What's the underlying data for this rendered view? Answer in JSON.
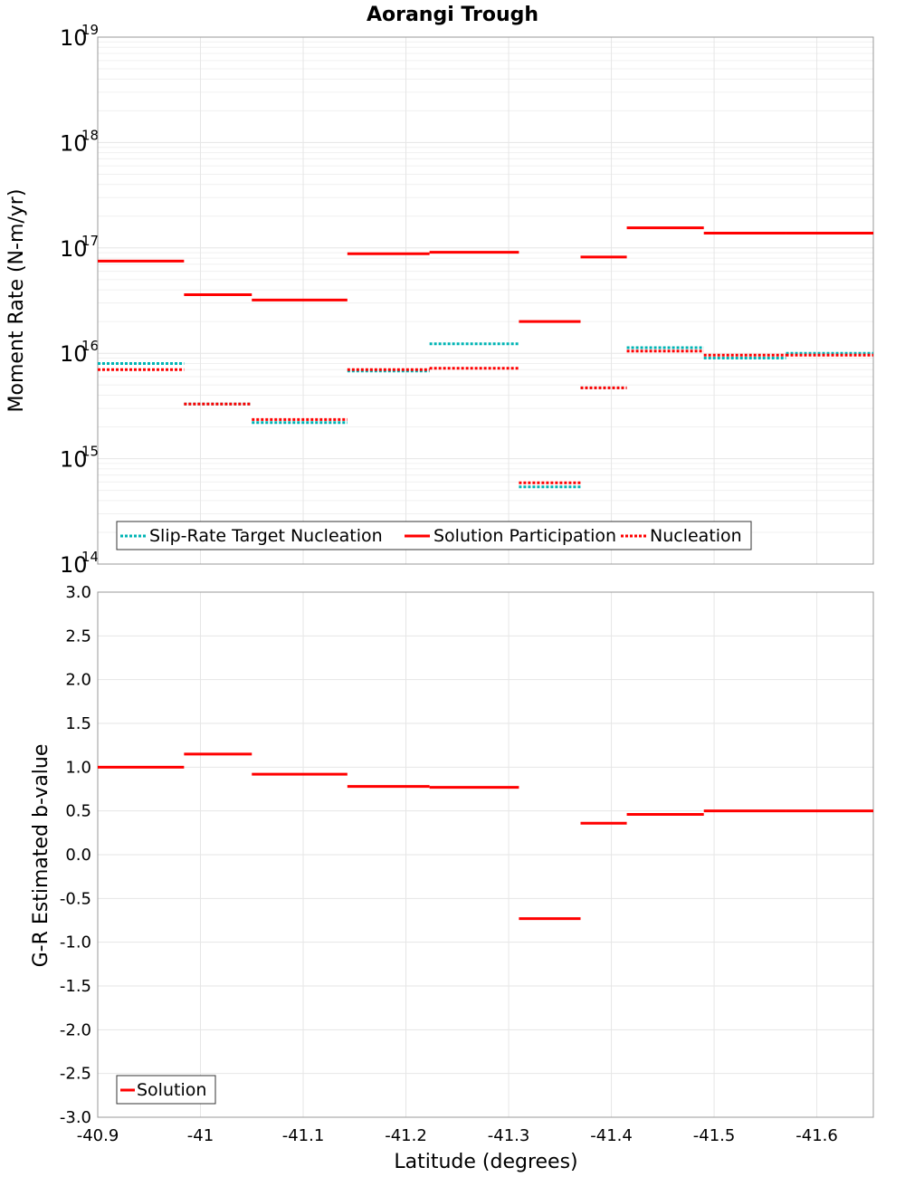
{
  "chart_data": [
    {
      "type": "line",
      "title": "Aorangi Trough",
      "ylabel": "Moment Rate (N-m/yr)",
      "xlabel": "",
      "yscale": "log",
      "ylim": [
        100000000000000.0,
        1e+19
      ],
      "xlim": [
        -40.9,
        -41.655
      ],
      "x_ticks": [
        -40.9,
        -41,
        -41.1,
        -41.2,
        -41.3,
        -41.4,
        -41.5,
        -41.6
      ],
      "y_ticks": [
        {
          "value": 100000000000000.0,
          "base": "10",
          "exp": "14"
        },
        {
          "value": 1000000000000000.0,
          "base": "10",
          "exp": "15"
        },
        {
          "value": 1e+16,
          "base": "10",
          "exp": "16"
        },
        {
          "value": 1e+17,
          "base": "10",
          "exp": "17"
        },
        {
          "value": 1e+18,
          "base": "10",
          "exp": "18"
        },
        {
          "value": 1e+19,
          "base": "10",
          "exp": "19"
        }
      ],
      "legend_position": "bottom-left",
      "series": [
        {
          "name": "Slip-Rate Target Nucleation",
          "color": "#00b4b4",
          "style": "dotted",
          "segments": [
            {
              "x0": -40.9,
              "x1": -40.984,
              "y": 8000000000000000.0
            },
            {
              "x0": -40.984,
              "x1": -41.05,
              "y": 3300000000000000.0
            },
            {
              "x0": -41.05,
              "x1": -41.143,
              "y": 2200000000000000.0
            },
            {
              "x0": -41.143,
              "x1": -41.223,
              "y": 6800000000000000.0
            },
            {
              "x0": -41.223,
              "x1": -41.31,
              "y": 1.23e+16
            },
            {
              "x0": -41.31,
              "x1": -41.37,
              "y": 540000000000000.0
            },
            {
              "x0": -41.37,
              "x1": -41.415,
              "y": 4700000000000000.0
            },
            {
              "x0": -41.415,
              "x1": -41.49,
              "y": 1.13e+16
            },
            {
              "x0": -41.49,
              "x1": -41.57,
              "y": 9000000000000000.0
            },
            {
              "x0": -41.57,
              "x1": -41.655,
              "y": 1e+16
            }
          ]
        },
        {
          "name": "Solution Participation",
          "color": "#ff0000",
          "style": "solid",
          "segments": [
            {
              "x0": -40.9,
              "x1": -40.984,
              "y": 7.5e+16
            },
            {
              "x0": -40.984,
              "x1": -41.05,
              "y": 3.6e+16
            },
            {
              "x0": -41.05,
              "x1": -41.143,
              "y": 3.2e+16
            },
            {
              "x0": -41.143,
              "x1": -41.223,
              "y": 8.8e+16
            },
            {
              "x0": -41.223,
              "x1": -41.31,
              "y": 9.1e+16
            },
            {
              "x0": -41.31,
              "x1": -41.37,
              "y": 2e+16
            },
            {
              "x0": -41.37,
              "x1": -41.415,
              "y": 8.2e+16
            },
            {
              "x0": -41.415,
              "x1": -41.49,
              "y": 1.55e+17
            },
            {
              "x0": -41.49,
              "x1": -41.57,
              "y": 1.38e+17
            },
            {
              "x0": -41.57,
              "x1": -41.655,
              "y": 1.38e+17
            }
          ]
        },
        {
          "name": "Nucleation",
          "color": "#ff0000",
          "style": "dotted",
          "segments": [
            {
              "x0": -40.9,
              "x1": -40.984,
              "y": 7000000000000000.0
            },
            {
              "x0": -40.984,
              "x1": -41.05,
              "y": 3300000000000000.0
            },
            {
              "x0": -41.05,
              "x1": -41.143,
              "y": 2350000000000000.0
            },
            {
              "x0": -41.143,
              "x1": -41.223,
              "y": 7000000000000000.0
            },
            {
              "x0": -41.223,
              "x1": -41.31,
              "y": 7200000000000000.0
            },
            {
              "x0": -41.31,
              "x1": -41.37,
              "y": 590000000000000.0
            },
            {
              "x0": -41.37,
              "x1": -41.415,
              "y": 4700000000000000.0
            },
            {
              "x0": -41.415,
              "x1": -41.49,
              "y": 1.05e+16
            },
            {
              "x0": -41.49,
              "x1": -41.57,
              "y": 9600000000000000.0
            },
            {
              "x0": -41.57,
              "x1": -41.655,
              "y": 9600000000000000.0
            }
          ]
        }
      ]
    },
    {
      "type": "line",
      "title": "",
      "ylabel": "G-R Estimated b-value",
      "xlabel": "Latitude (degrees)",
      "yscale": "linear",
      "ylim": [
        -3.0,
        3.0
      ],
      "xlim": [
        -40.9,
        -41.655
      ],
      "x_ticks": [
        -40.9,
        -41,
        -41.1,
        -41.2,
        -41.3,
        -41.4,
        -41.5,
        -41.6
      ],
      "x_tick_labels": [
        "-40.9",
        "-41",
        "-41.1",
        "-41.2",
        "-41.3",
        "-41.4",
        "-41.5",
        "-41.6"
      ],
      "y_ticks": [
        3.0,
        2.5,
        2.0,
        1.5,
        1.0,
        0.5,
        0.0,
        -0.5,
        -1.0,
        -1.5,
        -2.0,
        -2.5,
        -3.0
      ],
      "y_tick_labels": [
        "3.0",
        "2.5",
        "2.0",
        "1.5",
        "1.0",
        "0.5",
        "0.0",
        "-0.5",
        "-1.0",
        "-1.5",
        "-2.0",
        "-2.5",
        "-3.0"
      ],
      "legend_position": "bottom-left",
      "series": [
        {
          "name": "Solution",
          "color": "#ff0000",
          "style": "solid",
          "segments": [
            {
              "x0": -40.9,
              "x1": -40.984,
              "y": 1.0
            },
            {
              "x0": -40.984,
              "x1": -41.05,
              "y": 1.15
            },
            {
              "x0": -41.05,
              "x1": -41.143,
              "y": 0.92
            },
            {
              "x0": -41.143,
              "x1": -41.223,
              "y": 0.78
            },
            {
              "x0": -41.223,
              "x1": -41.31,
              "y": 0.77
            },
            {
              "x0": -41.31,
              "x1": -41.37,
              "y": -0.73
            },
            {
              "x0": -41.37,
              "x1": -41.415,
              "y": 0.36
            },
            {
              "x0": -41.415,
              "x1": -41.49,
              "y": 0.46
            },
            {
              "x0": -41.49,
              "x1": -41.57,
              "y": 0.5
            },
            {
              "x0": -41.57,
              "x1": -41.655,
              "y": 0.5
            }
          ]
        }
      ]
    }
  ]
}
